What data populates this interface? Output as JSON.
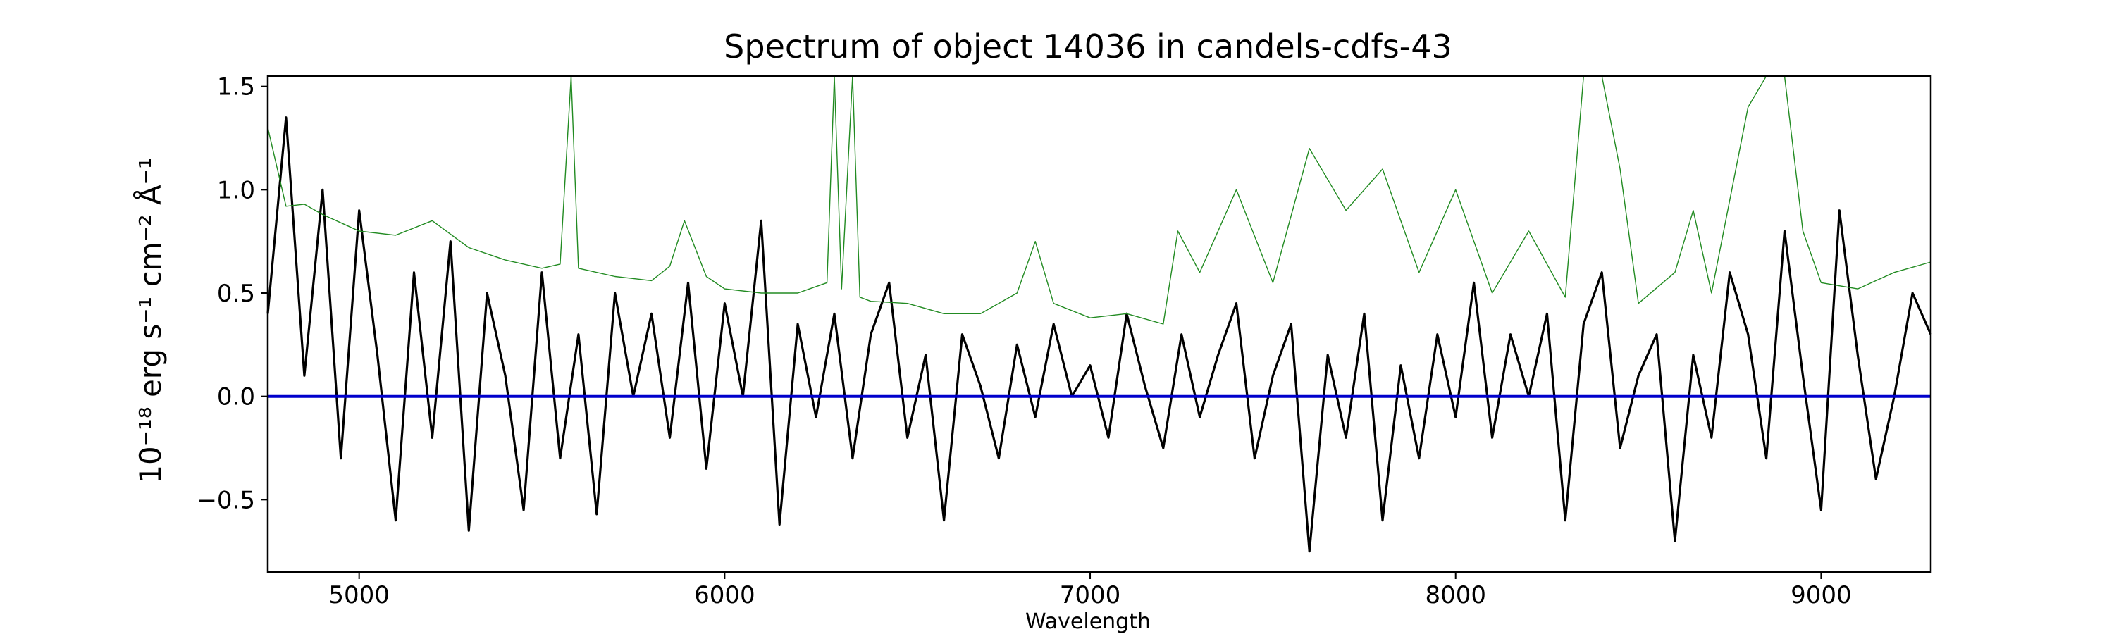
{
  "chart_data": {
    "type": "line",
    "title": "Spectrum of object 14036 in candels-cdfs-43",
    "xlabel": "Wavelength",
    "ylabel": "10⁻¹⁸ erg s⁻¹ cm⁻² Å⁻¹",
    "xlim": [
      4750,
      9300
    ],
    "ylim": [
      -0.85,
      1.55
    ],
    "x_ticks": [
      5000,
      6000,
      7000,
      8000,
      9000
    ],
    "y_ticks": [
      -0.5,
      0.0,
      0.5,
      1.0,
      1.5
    ],
    "x_tick_labels": [
      "5000",
      "6000",
      "7000",
      "8000",
      "9000"
    ],
    "y_tick_labels": [
      "−0.5",
      "0.0",
      "0.5",
      "1.0",
      "1.5"
    ],
    "grid": false,
    "series": [
      {
        "color": "#000000",
        "x": [
          4750,
          4800,
          4850,
          4900,
          4950,
          5000,
          5050,
          5100,
          5150,
          5200,
          5250,
          5300,
          5350,
          5400,
          5450,
          5500,
          5550,
          5600,
          5650,
          5700,
          5750,
          5800,
          5850,
          5900,
          5950,
          6000,
          6050,
          6100,
          6150,
          6200,
          6250,
          6300,
          6350,
          6400,
          6450,
          6500,
          6550,
          6600,
          6650,
          6700,
          6750,
          6800,
          6850,
          6900,
          6950,
          7000,
          7050,
          7100,
          7150,
          7200,
          7250,
          7300,
          7350,
          7400,
          7450,
          7500,
          7550,
          7600,
          7650,
          7700,
          7750,
          7800,
          7850,
          7900,
          7950,
          8000,
          8050,
          8100,
          8150,
          8200,
          8250,
          8300,
          8350,
          8400,
          8450,
          8500,
          8550,
          8600,
          8650,
          8700,
          8750,
          8800,
          8850,
          8900,
          8950,
          9000,
          9050,
          9100,
          9150,
          9200,
          9250,
          9300
        ],
        "y": [
          0.4,
          1.35,
          0.1,
          1.0,
          -0.3,
          0.9,
          0.2,
          -0.6,
          0.6,
          -0.2,
          0.75,
          -0.65,
          0.5,
          0.1,
          -0.55,
          0.6,
          -0.3,
          0.3,
          -0.57,
          0.5,
          0.0,
          0.4,
          -0.2,
          0.55,
          -0.35,
          0.45,
          0.0,
          0.85,
          -0.62,
          0.35,
          -0.1,
          0.4,
          -0.3,
          0.3,
          0.55,
          -0.2,
          0.2,
          -0.6,
          0.3,
          0.05,
          -0.3,
          0.25,
          -0.1,
          0.35,
          0.0,
          0.15,
          -0.2,
          0.4,
          0.05,
          -0.25,
          0.3,
          -0.1,
          0.2,
          0.45,
          -0.3,
          0.1,
          0.35,
          -0.75,
          0.2,
          -0.2,
          0.4,
          -0.6,
          0.15,
          -0.3,
          0.3,
          -0.1,
          0.55,
          -0.2,
          0.3,
          0.0,
          0.4,
          -0.6,
          0.35,
          0.6,
          -0.25,
          0.1,
          0.3,
          -0.7,
          0.2,
          -0.2,
          0.6,
          0.3,
          -0.3,
          0.8,
          0.1,
          -0.55,
          0.9,
          0.2,
          -0.4,
          0.0,
          0.5,
          0.3
        ]
      },
      {
        "color": "#228B22",
        "x": [
          4750,
          4800,
          4850,
          4900,
          5000,
          5100,
          5200,
          5300,
          5400,
          5500,
          5550,
          5580,
          5600,
          5700,
          5800,
          5850,
          5890,
          5950,
          6000,
          6100,
          6200,
          6280,
          6300,
          6320,
          6350,
          6370,
          6400,
          6500,
          6600,
          6700,
          6800,
          6850,
          6900,
          7000,
          7100,
          7200,
          7240,
          7300,
          7400,
          7500,
          7600,
          7700,
          7800,
          7900,
          8000,
          8100,
          8200,
          8300,
          8350,
          8400,
          8450,
          8500,
          8600,
          8650,
          8700,
          8800,
          8850,
          8900,
          8950,
          9000,
          9100,
          9200,
          9300
        ],
        "y": [
          1.3,
          0.92,
          0.93,
          0.88,
          0.8,
          0.78,
          0.85,
          0.72,
          0.66,
          0.62,
          0.64,
          1.55,
          0.62,
          0.58,
          0.56,
          0.63,
          0.85,
          0.58,
          0.52,
          0.5,
          0.5,
          0.55,
          1.55,
          0.52,
          1.55,
          0.48,
          0.46,
          0.45,
          0.4,
          0.4,
          0.5,
          0.75,
          0.45,
          0.38,
          0.4,
          0.35,
          0.8,
          0.6,
          1.0,
          0.55,
          1.2,
          0.9,
          1.1,
          0.6,
          1.0,
          0.5,
          0.8,
          0.48,
          1.55,
          1.55,
          1.1,
          0.45,
          0.6,
          0.9,
          0.5,
          1.4,
          1.55,
          1.55,
          0.8,
          0.55,
          0.52,
          0.6,
          0.65
        ]
      },
      {
        "color": "#0000CC",
        "x": [
          4750,
          9300
        ],
        "y": [
          0.0,
          0.0
        ]
      }
    ]
  }
}
